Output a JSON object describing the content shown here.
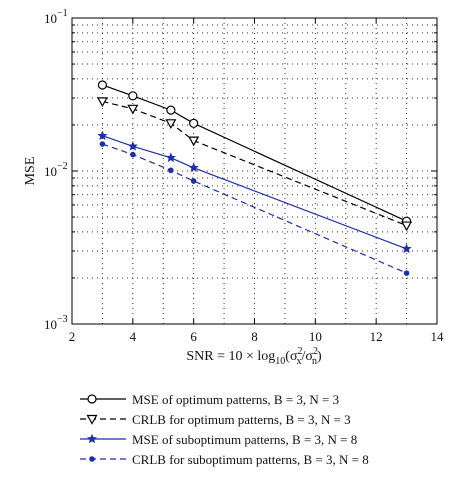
{
  "chart_data": {
    "type": "line",
    "xlabel": "SNR = 10 × log10(σx2/σn2)",
    "ylabel": "MSE",
    "xlim": [
      2,
      14
    ],
    "ylim": [
      0.001,
      0.1
    ],
    "yscale": "log",
    "grid": true,
    "x_ticks": [
      "2",
      "4",
      "6",
      "8",
      "10",
      "12",
      "14"
    ],
    "y_ticks": [
      {
        "base": "10",
        "exp": "−1"
      },
      {
        "base": "10",
        "exp": "−2"
      },
      {
        "base": "10",
        "exp": "−3"
      }
    ],
    "legend_position": "below",
    "series": [
      {
        "name": "MSE of optimum patterns, B = 3, N = 3",
        "color": "#000000",
        "dash": "solid",
        "marker": "circle",
        "x": [
          3,
          4,
          5.25,
          6,
          13
        ],
        "y": [
          0.0365,
          0.031,
          0.025,
          0.0205,
          0.0047
        ]
      },
      {
        "name": "CRLB for optimum patterns, B = 3, N = 3",
        "color": "#000000",
        "dash": "dashed",
        "marker": "triangle-down",
        "x": [
          3,
          4,
          5.25,
          6,
          13
        ],
        "y": [
          0.0285,
          0.0255,
          0.0205,
          0.0158,
          0.0044
        ]
      },
      {
        "name": "MSE of suboptimum patterns, B = 3, N = 8",
        "color": "#1f2fa8",
        "dash": "solid",
        "marker": "star",
        "x": [
          3,
          4,
          5.25,
          6,
          13
        ],
        "y": [
          0.017,
          0.0145,
          0.0122,
          0.0105,
          0.0031
        ]
      },
      {
        "name": "CRLB for suboptimum patterns, B = 3, N = 8",
        "color": "#1f2fa8",
        "dash": "dashed",
        "marker": "dot",
        "x": [
          3,
          4,
          5.25,
          6,
          13
        ],
        "y": [
          0.015,
          0.0128,
          0.0101,
          0.0086,
          0.00215
        ]
      }
    ]
  }
}
